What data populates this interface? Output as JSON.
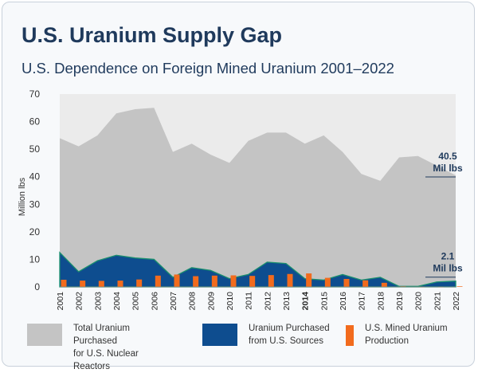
{
  "title": "U.S. Uranium Supply Gap",
  "subtitle": "U.S. Dependence on Foreign Mined Uranium 2001–2022",
  "chart_data": {
    "type": "area",
    "categories": [
      "2001",
      "2002",
      "2003",
      "2004",
      "2005",
      "2006",
      "2007",
      "2008",
      "2009",
      "2010",
      "2011",
      "2012",
      "2013",
      "2014",
      "2015",
      "2016",
      "2017",
      "2018",
      "2019",
      "2020",
      "2021",
      "2022"
    ],
    "ylabel": "Million lbs",
    "ylim": [
      0,
      70
    ],
    "yticks": [
      0,
      10,
      20,
      30,
      40,
      50,
      60,
      70
    ],
    "series": [
      {
        "name": "Total Uranium Purchased\nfor U.S. Nuclear Reactors",
        "type": "area",
        "color": "#c4c4c4",
        "values": [
          54,
          51,
          55,
          63,
          64.5,
          65,
          49,
          52,
          48,
          45,
          53,
          56,
          56,
          52,
          55,
          49,
          41,
          38.5,
          47,
          47.5,
          44,
          40.5
        ]
      },
      {
        "name": "Uranium Purchased\nfrom U.S. Sources",
        "type": "area",
        "color": "#0e4d8f",
        "values": [
          12.5,
          5.5,
          9.5,
          11.5,
          10.5,
          10,
          3.5,
          7,
          6,
          3,
          4.5,
          9,
          8.5,
          3,
          2.5,
          4.5,
          2.5,
          3.5,
          0.2,
          0.2,
          1.8,
          2.1
        ]
      },
      {
        "name": "U.S. Mined Uranium\nProduction",
        "type": "bar",
        "color": "#f26b1d",
        "values": [
          2.6,
          2.3,
          2.2,
          2.3,
          2.7,
          4.1,
          4.5,
          3.9,
          4.1,
          4.2,
          4.0,
          4.3,
          4.7,
          4.9,
          3.3,
          2.9,
          2.4,
          1.5,
          0.2,
          0.02,
          0.02,
          0.2
        ]
      }
    ],
    "annotations": [
      {
        "text": "40.5\nMil lbs",
        "year": "2022",
        "value": 40.5
      },
      {
        "text": "2.1\nMil lbs",
        "year": "2022",
        "value": 2.1
      }
    ],
    "legend_position": "bottom"
  }
}
